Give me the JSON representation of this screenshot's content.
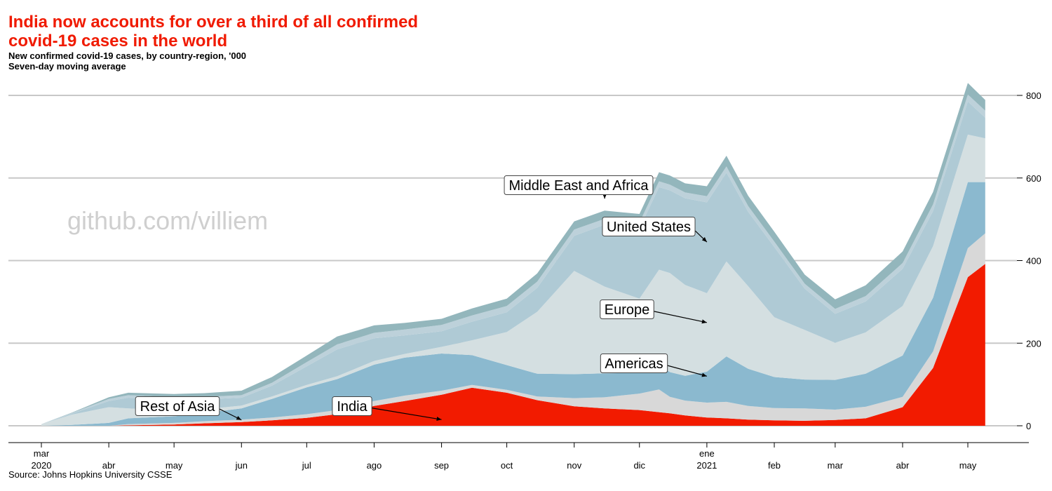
{
  "header": {
    "title": "India now accounts for over a third of all confirmed covid-19 cases in the world",
    "subtitle_line1": "New confirmed covid-19 cases, by country-region, '000",
    "subtitle_line2": "Seven-day moving average"
  },
  "footer": {
    "source": "Source: Johns Hopkins University CSSE"
  },
  "watermark": "github.com/villiem",
  "chart_data": {
    "type": "area",
    "stacked": true,
    "title": "India now accounts for over a third of all confirmed covid-19 cases in the world",
    "subtitle": "New confirmed covid-19 cases, by country-region, '000 · Seven-day moving average",
    "xlabel": "",
    "ylabel": "",
    "x_range": [
      "2020-02-25",
      "2021-05-10"
    ],
    "ylim": [
      0,
      850
    ],
    "yticks": [
      0,
      200,
      400,
      600,
      800
    ],
    "y_axis_side": "right",
    "grid": true,
    "x_ticks": [
      {
        "date": "2020-03-01",
        "label": "mar",
        "year": "2020"
      },
      {
        "date": "2020-04-01",
        "label": "abr"
      },
      {
        "date": "2020-05-01",
        "label": "may"
      },
      {
        "date": "2020-06-01",
        "label": "jun"
      },
      {
        "date": "2020-07-01",
        "label": "jul"
      },
      {
        "date": "2020-08-01",
        "label": "ago"
      },
      {
        "date": "2020-09-01",
        "label": "sep"
      },
      {
        "date": "2020-10-01",
        "label": "oct"
      },
      {
        "date": "2020-11-01",
        "label": "nov"
      },
      {
        "date": "2020-12-01",
        "label": "dic"
      },
      {
        "date": "2021-01-01",
        "label": "ene",
        "year": "2021"
      },
      {
        "date": "2021-02-01",
        "label": "feb"
      },
      {
        "date": "2021-03-01",
        "label": "mar"
      },
      {
        "date": "2021-04-01",
        "label": "abr"
      },
      {
        "date": "2021-05-01",
        "label": "may"
      }
    ],
    "x": [
      "2020-03-01",
      "2020-03-15",
      "2020-04-01",
      "2020-04-10",
      "2020-05-01",
      "2020-05-15",
      "2020-06-01",
      "2020-06-15",
      "2020-07-01",
      "2020-07-15",
      "2020-08-01",
      "2020-08-15",
      "2020-09-01",
      "2020-09-15",
      "2020-10-01",
      "2020-10-15",
      "2020-11-01",
      "2020-11-15",
      "2020-12-01",
      "2020-12-10",
      "2020-12-15",
      "2020-12-22",
      "2021-01-01",
      "2021-01-10",
      "2021-01-20",
      "2021-02-01",
      "2021-02-15",
      "2021-03-01",
      "2021-03-15",
      "2021-04-01",
      "2021-04-15",
      "2021-05-01",
      "2021-05-09"
    ],
    "series": [
      {
        "name": "India",
        "color": "#f21b00",
        "values": [
          0,
          0,
          0,
          1,
          3,
          6,
          9,
          13,
          19,
          28,
          48,
          60,
          75,
          92,
          80,
          62,
          47,
          42,
          38,
          33,
          30,
          25,
          20,
          18,
          15,
          13,
          12,
          14,
          18,
          45,
          140,
          360,
          392
        ]
      },
      {
        "name": "",
        "color": "#d8d8d8",
        "values": [
          0,
          0,
          0,
          3,
          4,
          5,
          6,
          7,
          9,
          10,
          12,
          13,
          10,
          7,
          7,
          9,
          20,
          27,
          40,
          55,
          40,
          36,
          36,
          40,
          33,
          30,
          30,
          25,
          28,
          25,
          40,
          70,
          74
        ]
      },
      {
        "name": "Americas",
        "color": "#8bb9cf",
        "values": [
          0,
          2,
          7,
          14,
          16,
          20,
          27,
          45,
          65,
          75,
          88,
          92,
          90,
          72,
          60,
          55,
          58,
          58,
          50,
          60,
          60,
          60,
          75,
          110,
          90,
          75,
          70,
          72,
          80,
          100,
          130,
          160,
          124
        ]
      },
      {
        "name": "Europe",
        "color": "#d4dfe1",
        "values": [
          4,
          25,
          38,
          24,
          13,
          9,
          7,
          6,
          6,
          7,
          9,
          9,
          16,
          36,
          80,
          150,
          250,
          210,
          180,
          230,
          240,
          220,
          190,
          230,
          200,
          145,
          120,
          90,
          100,
          120,
          125,
          115,
          106
        ]
      },
      {
        "name": "United States",
        "color": "#afcad5",
        "values": [
          0,
          2,
          15,
          26,
          27,
          24,
          19,
          26,
          45,
          65,
          55,
          45,
          38,
          45,
          48,
          58,
          85,
          150,
          170,
          200,
          200,
          210,
          220,
          215,
          180,
          170,
          100,
          70,
          75,
          90,
          85,
          80,
          50
        ]
      },
      {
        "name": "Rest of Asia",
        "color": "#bdd1da",
        "values": [
          0,
          2,
          5,
          6,
          6,
          6,
          6,
          7,
          10,
          12,
          13,
          14,
          15,
          15,
          15,
          15,
          15,
          14,
          14,
          14,
          14,
          14,
          15,
          15,
          14,
          13,
          12,
          12,
          13,
          14,
          16,
          17,
          17
        ]
      },
      {
        "name": "Middle East and Africa",
        "color": "#93b6bc",
        "values": [
          0,
          1,
          4,
          6,
          8,
          9,
          11,
          14,
          16,
          19,
          18,
          16,
          15,
          17,
          18,
          20,
          20,
          20,
          21,
          22,
          22,
          22,
          24,
          26,
          25,
          24,
          22,
          23,
          26,
          28,
          30,
          28,
          26
        ]
      }
    ],
    "annotations": [
      {
        "text": "Middle East and Africa",
        "target_date": "2020-11-15",
        "target_value": 550
      },
      {
        "text": "United States",
        "target_date": "2021-01-01",
        "target_value": 445
      },
      {
        "text": "Europe",
        "target_date": "2021-01-01",
        "target_value": 250
      },
      {
        "text": "Americas",
        "target_date": "2021-01-01",
        "target_value": 120
      },
      {
        "text": "Rest of Asia",
        "target_date": "2020-06-01",
        "target_value": 14
      },
      {
        "text": "India",
        "target_date": "2020-09-01",
        "target_value": 15
      }
    ]
  }
}
